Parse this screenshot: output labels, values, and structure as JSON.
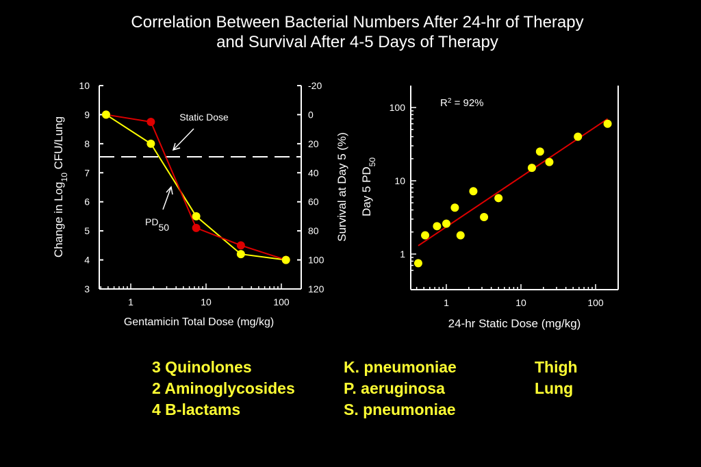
{
  "title": {
    "line1": "Correlation Between Bacterial Numbers After 24-hr of Therapy",
    "line2": "and Survival After 4-5 Days of Therapy"
  },
  "colors": {
    "background": "#000000",
    "yellow": "#ffff00",
    "red": "#dd0000",
    "text": "#ffffff",
    "footer": "#ffff33"
  },
  "chart_data": [
    {
      "type": "line",
      "xlabel": "Gentamicin Total Dose (mg/kg)",
      "x_scale": "log",
      "xlim": [
        0.4,
        150
      ],
      "xticks": [
        {
          "v": 1,
          "label": "1"
        },
        {
          "v": 10,
          "label": "10"
        },
        {
          "v": 100,
          "label": "100"
        }
      ],
      "ylabel_left": {
        "main": "Change in Log",
        "sub": "10",
        "tail": " CFU/Lung"
      },
      "ylim_left": [
        3,
        10
      ],
      "yticks_left": [
        "3",
        "4",
        "5",
        "6",
        "7",
        "8",
        "9",
        "10"
      ],
      "ylabel_right_1": "Survival at Day 5 (%)",
      "ylabel_right_2": {
        "main": "Day 5 PD",
        "sub": "50"
      },
      "ylim_right": [
        120,
        -20
      ],
      "yticks_right": [
        "120",
        "100",
        "80",
        "60",
        "40",
        "20",
        "0",
        "-20"
      ],
      "series": [
        {
          "color": "#ffff00",
          "axis": "left",
          "x": [
            0.47,
            1.85,
            7.4,
            29,
            115
          ],
          "y": [
            9.0,
            8.0,
            5.5,
            4.2,
            4.0
          ]
        },
        {
          "color": "#dd0000",
          "axis": "right",
          "x": [
            0.47,
            1.85,
            7.4,
            29,
            115
          ],
          "y": [
            0,
            5,
            78,
            90,
            100
          ]
        }
      ],
      "reference_line": {
        "y": 7.55,
        "style": "dashed"
      },
      "annotations": [
        {
          "text": "Static Dose"
        },
        {
          "text": "PD",
          "sub": "50"
        }
      ],
      "grid": false
    },
    {
      "type": "scatter",
      "xlabel": "24-hr Static Dose (mg/kg)",
      "x_scale": "log",
      "xlim": [
        0.35,
        200
      ],
      "y_scale": "log",
      "ylim": [
        0.6,
        140
      ],
      "xticks": [
        {
          "v": 1,
          "label": "1"
        },
        {
          "v": 10,
          "label": "10"
        },
        {
          "v": 100,
          "label": "100"
        }
      ],
      "yticks": [
        {
          "v": 1,
          "label": "1"
        },
        {
          "v": 10,
          "label": "10"
        },
        {
          "v": 100,
          "label": "100"
        }
      ],
      "points": {
        "x": [
          0.42,
          0.52,
          0.75,
          1.0,
          1.3,
          1.55,
          2.3,
          3.2,
          5.0,
          14,
          18,
          24,
          58,
          145
        ],
        "y": [
          0.75,
          1.8,
          2.4,
          2.6,
          4.3,
          1.8,
          7.2,
          3.2,
          5.8,
          15,
          25,
          18,
          40,
          60
        ]
      },
      "point_color": "#ffff00",
      "fit_line": {
        "x": [
          0.42,
          145
        ],
        "y": [
          1.3,
          70
        ],
        "color": "#dd0000"
      },
      "r2_label": {
        "main": "R",
        "sup": "2",
        "tail": " = 92%"
      },
      "grid": false
    }
  ],
  "footer": {
    "col1": [
      "3 Quinolones",
      "2 Aminoglycosides",
      "4 B-lactams"
    ],
    "col2": [
      "K. pneumoniae",
      "P. aeruginosa",
      "S. pneumoniae"
    ],
    "col3": [
      "Thigh",
      "Lung"
    ]
  }
}
